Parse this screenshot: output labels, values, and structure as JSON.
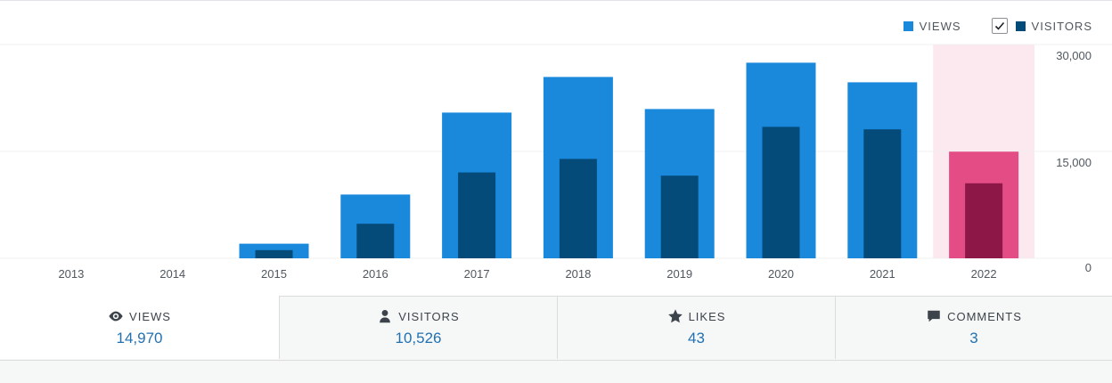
{
  "legend": {
    "views_label": "VIEWS",
    "visitors_label": "VISITORS",
    "visitors_checked": true
  },
  "colors": {
    "views": "#1a89db",
    "visitors": "#044b7a",
    "highlight_views": "#e34c84",
    "highlight_visitors": "#8d1848",
    "highlight_band": "#fbe9ef",
    "grid": "#f0f0f1",
    "axis_text": "#50575e"
  },
  "chart_data": {
    "type": "bar",
    "categories": [
      "2013",
      "2014",
      "2015",
      "2016",
      "2017",
      "2018",
      "2019",
      "2020",
      "2021",
      "2022"
    ],
    "series": [
      {
        "name": "VIEWS",
        "values": [
          0,
          0,
          2050,
          8950,
          20450,
          25450,
          20950,
          27450,
          24700,
          14970
        ]
      },
      {
        "name": "VISITORS",
        "values": [
          0,
          0,
          1150,
          4850,
          12050,
          13950,
          11600,
          18450,
          18100,
          10526
        ]
      }
    ],
    "highlighted_category": "2022",
    "ylim": [
      0,
      30000
    ],
    "y_ticks": [
      "0",
      "15,000",
      "30,000"
    ],
    "y_tick_values": [
      0,
      15000,
      30000
    ],
    "y_axis_side": "right",
    "grid": true,
    "legend_position": "top-right"
  },
  "tabs": [
    {
      "label": "VIEWS",
      "value": "14,970",
      "icon": "eye-icon",
      "active": true
    },
    {
      "label": "VISITORS",
      "value": "10,526",
      "icon": "person-icon",
      "active": false
    },
    {
      "label": "LIKES",
      "value": "43",
      "icon": "star-icon",
      "active": false
    },
    {
      "label": "COMMENTS",
      "value": "3",
      "icon": "comment-icon",
      "active": false
    }
  ]
}
